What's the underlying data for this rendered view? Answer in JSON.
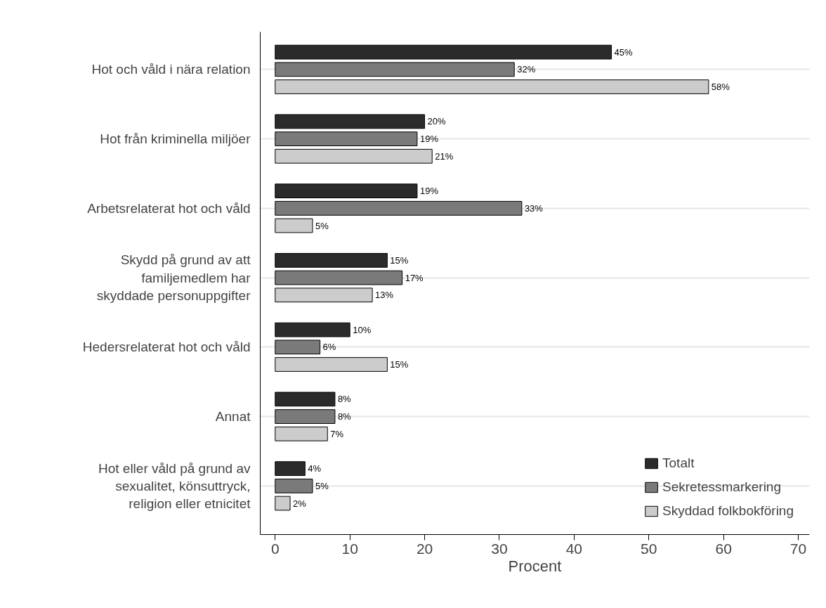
{
  "chart_data": {
    "type": "bar",
    "orientation": "horizontal",
    "xlabel": "Procent",
    "categories": [
      "Hot och våld i nära relation",
      "Hot från kriminella miljöer",
      "Arbetsrelaterat hot och våld",
      "Skydd på grund av att\nfamiljemedlem har\nskyddade personuppgifter",
      "Hedersrelaterat hot och våld",
      "Annat",
      "Hot eller våld på grund av\nsexualitet, könsuttryck,\nreligion eller etnicitet"
    ],
    "series": [
      {
        "name": "Totalt",
        "color": "#2b2b2b",
        "values": [
          45,
          20,
          19,
          15,
          10,
          8,
          4
        ],
        "value_labels": [
          "45%",
          "20%",
          "19%",
          "15%",
          "10%",
          "8%",
          "4%"
        ]
      },
      {
        "name": "Sekretessmarkering",
        "color": "#7a7a7a",
        "values": [
          32,
          19,
          33,
          17,
          6,
          8,
          5
        ],
        "value_labels": [
          "32%",
          "19%",
          "33%",
          "17%",
          "6%",
          "8%",
          "5%"
        ]
      },
      {
        "name": "Skyddad folkbokföring",
        "color": "#cccccc",
        "values": [
          58,
          21,
          5,
          13,
          15,
          7,
          2
        ],
        "value_labels": [
          "58%",
          "21%",
          "5%",
          "13%",
          "15%",
          "7%",
          "2%"
        ]
      }
    ],
    "xlim": [
      -2,
      71.5
    ],
    "xticks": [
      0,
      10,
      20,
      30,
      40,
      50,
      60,
      70
    ],
    "grid": "y",
    "legend": "bottom right"
  }
}
